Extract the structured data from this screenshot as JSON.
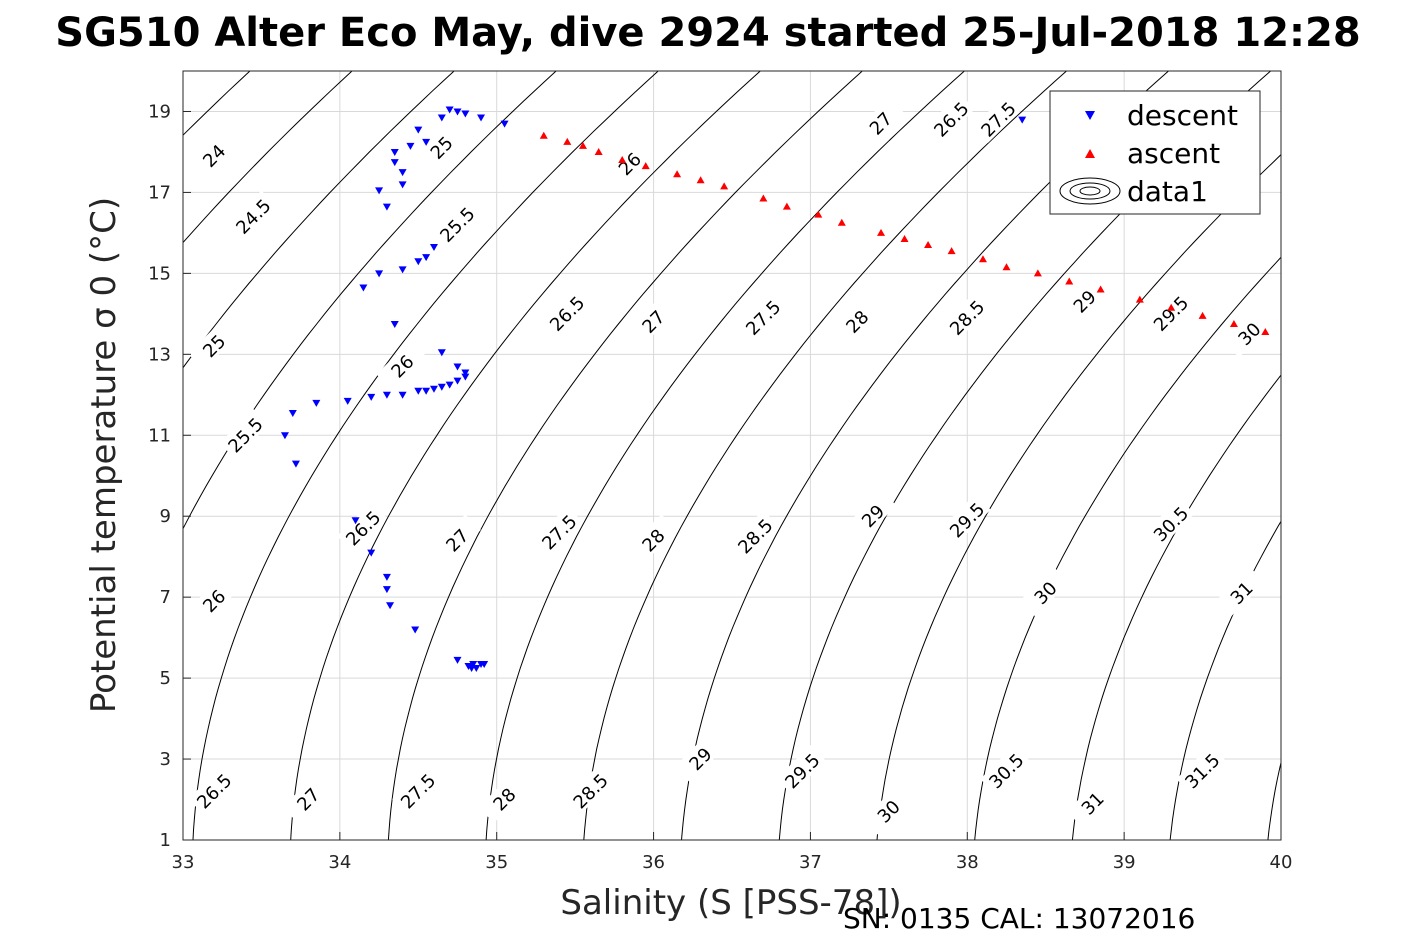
{
  "chart_data": {
    "type": "scatter",
    "title": "SG510 Alter Eco May, dive 2924 started 25-Jul-2018 12:28",
    "xlabel": "Salinity (S [PSS-78])",
    "ylabel": "Potential temperature σ 0 (°C)",
    "xlim": [
      33,
      40
    ],
    "ylim": [
      1,
      20
    ],
    "xticks": [
      "33",
      "34",
      "35",
      "36",
      "37",
      "38",
      "39",
      "40"
    ],
    "yticks": [
      "1",
      "3",
      "5",
      "7",
      "9",
      "11",
      "13",
      "15",
      "17",
      "19"
    ],
    "grid": true,
    "legend_position": "top-right",
    "legend": [
      "descent",
      "ascent",
      "data1"
    ],
    "footer": "SN: 0135  CAL: 13072016",
    "colors": {
      "descent": "#0000ff",
      "ascent": "#ff0000",
      "contour": "#000000",
      "grid": "#d9d9d9"
    },
    "contour_levels": [
      {
        "label": "24",
        "x": 33.2,
        "y": 17.9
      },
      {
        "label": "24.5",
        "x": 33.45,
        "y": 16.4
      },
      {
        "label": "25",
        "x": 33.2,
        "y": 13.2
      },
      {
        "label": "25",
        "x": 34.65,
        "y": 18.1
      },
      {
        "label": "25.5",
        "x": 33.4,
        "y": 11.0
      },
      {
        "label": "25.5",
        "x": 34.75,
        "y": 16.2
      },
      {
        "label": "26",
        "x": 33.2,
        "y": 6.9
      },
      {
        "label": "26",
        "x": 34.4,
        "y": 12.7
      },
      {
        "label": "26",
        "x": 35.85,
        "y": 17.7
      },
      {
        "label": "26.5",
        "x": 33.2,
        "y": 2.2
      },
      {
        "label": "26.5",
        "x": 34.15,
        "y": 8.7
      },
      {
        "label": "26.5",
        "x": 35.45,
        "y": 14.0
      },
      {
        "label": "26.5",
        "x": 37.9,
        "y": 18.8
      },
      {
        "label": "27",
        "x": 33.8,
        "y": 2.0
      },
      {
        "label": "27",
        "x": 34.75,
        "y": 8.4
      },
      {
        "label": "27",
        "x": 36.0,
        "y": 13.8
      },
      {
        "label": "27",
        "x": 37.45,
        "y": 18.7
      },
      {
        "label": "27.5",
        "x": 34.5,
        "y": 2.2
      },
      {
        "label": "27.5",
        "x": 35.4,
        "y": 8.6
      },
      {
        "label": "27.5",
        "x": 36.7,
        "y": 13.9
      },
      {
        "label": "27.5",
        "x": 38.2,
        "y": 18.8
      },
      {
        "label": "28",
        "x": 35.05,
        "y": 2.0
      },
      {
        "label": "28",
        "x": 36.0,
        "y": 8.4
      },
      {
        "label": "28",
        "x": 37.3,
        "y": 13.8
      },
      {
        "label": "28.5",
        "x": 35.6,
        "y": 2.2
      },
      {
        "label": "28.5",
        "x": 36.65,
        "y": 8.5
      },
      {
        "label": "28.5",
        "x": 38.0,
        "y": 13.9
      },
      {
        "label": "29",
        "x": 36.3,
        "y": 3.0
      },
      {
        "label": "29",
        "x": 37.4,
        "y": 9.0
      },
      {
        "label": "29",
        "x": 38.75,
        "y": 14.3
      },
      {
        "label": "29.5",
        "x": 36.95,
        "y": 2.7
      },
      {
        "label": "29.5",
        "x": 38.0,
        "y": 8.9
      },
      {
        "label": "29.5",
        "x": 39.3,
        "y": 14.0
      },
      {
        "label": "30",
        "x": 37.5,
        "y": 1.7
      },
      {
        "label": "30",
        "x": 38.5,
        "y": 7.1
      },
      {
        "label": "30",
        "x": 39.8,
        "y": 13.5
      },
      {
        "label": "30.5",
        "x": 38.25,
        "y": 2.7
      },
      {
        "label": "30.5",
        "x": 39.3,
        "y": 8.8
      },
      {
        "label": "31",
        "x": 38.8,
        "y": 1.9
      },
      {
        "label": "31",
        "x": 39.75,
        "y": 7.1
      },
      {
        "label": "31.5",
        "x": 39.5,
        "y": 2.7
      }
    ],
    "series": [
      {
        "name": "descent",
        "marker": "down-triangle",
        "points": [
          [
            34.7,
            19.05
          ],
          [
            34.75,
            19.0
          ],
          [
            34.8,
            18.95
          ],
          [
            34.9,
            18.85
          ],
          [
            35.05,
            18.7
          ],
          [
            34.65,
            18.85
          ],
          [
            34.5,
            18.55
          ],
          [
            34.55,
            18.25
          ],
          [
            34.45,
            18.15
          ],
          [
            34.35,
            18.0
          ],
          [
            34.35,
            17.75
          ],
          [
            34.4,
            17.5
          ],
          [
            34.4,
            17.2
          ],
          [
            34.25,
            17.05
          ],
          [
            34.3,
            16.65
          ],
          [
            34.6,
            15.65
          ],
          [
            34.55,
            15.4
          ],
          [
            34.5,
            15.3
          ],
          [
            34.4,
            15.1
          ],
          [
            34.25,
            15.0
          ],
          [
            34.15,
            14.65
          ],
          [
            34.35,
            13.75
          ],
          [
            34.65,
            13.05
          ],
          [
            34.75,
            12.7
          ],
          [
            34.8,
            12.55
          ],
          [
            34.8,
            12.45
          ],
          [
            34.75,
            12.35
          ],
          [
            34.7,
            12.25
          ],
          [
            34.65,
            12.2
          ],
          [
            34.6,
            12.15
          ],
          [
            34.55,
            12.1
          ],
          [
            34.5,
            12.1
          ],
          [
            34.4,
            12.0
          ],
          [
            34.3,
            12.0
          ],
          [
            34.2,
            11.95
          ],
          [
            34.05,
            11.85
          ],
          [
            33.85,
            11.8
          ],
          [
            33.7,
            11.55
          ],
          [
            33.65,
            11.0
          ],
          [
            33.72,
            10.3
          ],
          [
            34.1,
            8.9
          ],
          [
            34.2,
            8.1
          ],
          [
            34.3,
            7.5
          ],
          [
            34.3,
            7.2
          ],
          [
            34.32,
            6.8
          ],
          [
            34.48,
            6.2
          ],
          [
            34.75,
            5.45
          ],
          [
            34.85,
            5.35
          ],
          [
            34.9,
            5.35
          ],
          [
            34.87,
            5.25
          ],
          [
            34.84,
            5.25
          ],
          [
            34.82,
            5.3
          ],
          [
            34.92,
            5.35
          ],
          [
            38.35,
            18.8
          ]
        ]
      },
      {
        "name": "ascent",
        "marker": "up-triangle",
        "points": [
          [
            35.3,
            18.4
          ],
          [
            35.45,
            18.25
          ],
          [
            35.55,
            18.15
          ],
          [
            35.65,
            18.0
          ],
          [
            35.8,
            17.8
          ],
          [
            35.95,
            17.65
          ],
          [
            36.15,
            17.45
          ],
          [
            36.3,
            17.3
          ],
          [
            36.45,
            17.15
          ],
          [
            36.7,
            16.85
          ],
          [
            36.85,
            16.65
          ],
          [
            37.05,
            16.45
          ],
          [
            37.2,
            16.25
          ],
          [
            37.45,
            16.0
          ],
          [
            37.6,
            15.85
          ],
          [
            37.75,
            15.7
          ],
          [
            37.9,
            15.55
          ],
          [
            38.1,
            15.35
          ],
          [
            38.25,
            15.15
          ],
          [
            38.45,
            15.0
          ],
          [
            38.65,
            14.8
          ],
          [
            38.85,
            14.6
          ],
          [
            39.1,
            14.35
          ],
          [
            39.3,
            14.15
          ],
          [
            39.5,
            13.95
          ],
          [
            39.7,
            13.75
          ],
          [
            39.9,
            13.55
          ]
        ]
      }
    ]
  }
}
